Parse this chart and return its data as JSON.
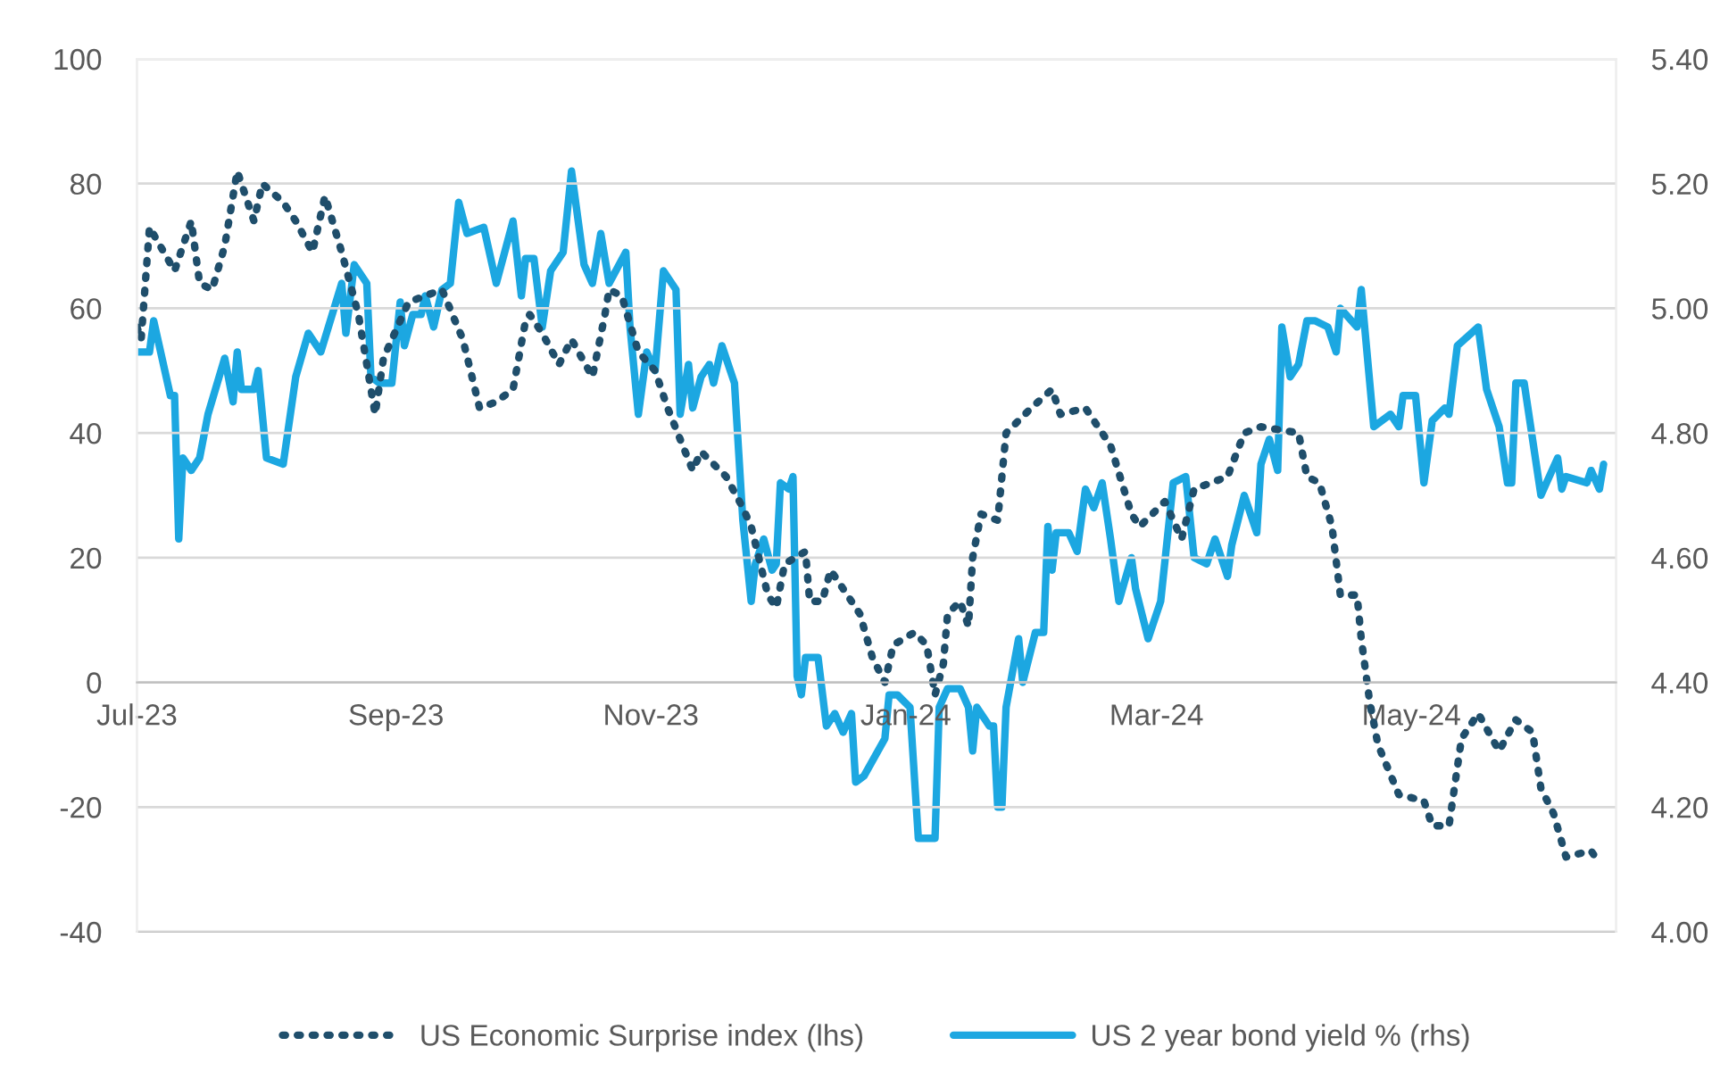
{
  "chart_data": {
    "type": "line",
    "grid": "y",
    "legend": "bottom",
    "xlim": [
      "2023-07-01",
      "2024-06-19"
    ],
    "xticks": [
      {
        "value": "2023-07-01",
        "label": "Jul-23"
      },
      {
        "value": "2023-09-01",
        "label": "Sep-23"
      },
      {
        "value": "2023-11-01",
        "label": "Nov-23"
      },
      {
        "value": "2024-01-01",
        "label": "Jan-24"
      },
      {
        "value": "2024-03-01",
        "label": "Mar-24"
      },
      {
        "value": "2024-05-01",
        "label": "May-24"
      }
    ],
    "ylim": [
      -40,
      100
    ],
    "yticks": [
      -40,
      -20,
      0,
      20,
      40,
      60,
      80,
      100
    ],
    "y2lim": [
      4.0,
      5.4
    ],
    "y2ticks": [
      {
        "value": 4.0,
        "label": "4.00"
      },
      {
        "value": 4.2,
        "label": "4.20"
      },
      {
        "value": 4.4,
        "label": "4.40"
      },
      {
        "value": 4.6,
        "label": "4.60"
      },
      {
        "value": 4.8,
        "label": "4.80"
      },
      {
        "value": 5.0,
        "label": "5.00"
      },
      {
        "value": 5.2,
        "label": "5.20"
      },
      {
        "value": 5.4,
        "label": "5.40"
      }
    ],
    "series": [
      {
        "name": "US Economic Surprise index (lhs)",
        "color": "#1f4e6b",
        "line_style": "dotted",
        "axis": "y",
        "x": [
          "2023-07-01",
          "2023-07-02",
          "2023-07-04",
          "2023-07-10",
          "2023-07-14",
          "2023-07-16",
          "2023-07-19",
          "2023-07-22",
          "2023-07-25",
          "2023-07-29",
          "2023-07-31",
          "2023-08-05",
          "2023-08-08",
          "2023-08-12",
          "2023-08-15",
          "2023-08-19",
          "2023-08-23",
          "2023-08-27",
          "2023-08-29",
          "2023-09-04",
          "2023-09-12",
          "2023-09-17",
          "2023-09-21",
          "2023-09-25",
          "2023-09-29",
          "2023-10-02",
          "2023-10-03",
          "2023-10-06",
          "2023-10-10",
          "2023-10-13",
          "2023-10-18",
          "2023-10-21",
          "2023-10-22",
          "2023-10-25",
          "2023-10-29",
          "2023-11-02",
          "2023-11-05",
          "2023-11-08",
          "2023-11-11",
          "2023-11-13",
          "2023-11-19",
          "2023-11-23",
          "2023-11-25",
          "2023-11-29",
          "2023-12-01",
          "2023-12-03",
          "2023-12-08",
          "2023-12-09",
          "2023-12-12",
          "2023-12-14",
          "2023-12-17",
          "2023-12-21",
          "2023-12-24",
          "2023-12-27",
          "2023-12-29",
          "2024-01-03",
          "2024-01-06",
          "2024-01-08",
          "2024-01-10",
          "2024-01-11",
          "2024-01-14",
          "2024-01-16",
          "2024-01-17",
          "2024-01-19",
          "2024-01-23",
          "2024-01-24",
          "2024-01-25",
          "2024-01-31",
          "2024-02-05",
          "2024-02-07",
          "2024-02-13",
          "2024-02-19",
          "2024-02-24",
          "2024-02-26",
          "2024-03-03",
          "2024-03-07",
          "2024-03-10",
          "2024-03-18",
          "2024-03-22",
          "2024-03-26",
          "2024-04-04",
          "2024-04-06",
          "2024-04-09",
          "2024-04-12",
          "2024-04-14",
          "2024-04-18",
          "2024-04-19",
          "2024-04-21",
          "2024-04-23",
          "2024-04-28",
          "2024-05-04",
          "2024-05-06",
          "2024-05-10",
          "2024-05-13",
          "2024-05-17",
          "2024-05-22",
          "2024-05-26",
          "2024-05-30",
          "2024-06-01",
          "2024-06-04",
          "2024-06-07",
          "2024-06-13",
          "2024-06-15"
        ],
        "values": [
          57,
          55,
          73,
          66,
          74,
          64,
          63,
          70,
          82,
          74,
          80,
          77,
          74,
          69,
          78,
          69,
          59,
          43,
          52,
          61,
          63,
          55,
          44,
          45,
          47,
          58,
          59,
          56,
          51,
          55,
          49,
          59,
          63,
          62,
          53,
          50,
          44,
          39,
          34,
          37,
          33,
          28,
          25,
          14,
          12,
          19,
          21,
          13,
          13,
          18,
          15,
          11,
          4,
          0,
          6,
          8,
          6,
          -2,
          3,
          11,
          13,
          9,
          20,
          27,
          26,
          33,
          40,
          44,
          47,
          43,
          44,
          38,
          27,
          25,
          29,
          23,
          31,
          33,
          40,
          41,
          40,
          33,
          32,
          25,
          14,
          14,
          7,
          -3,
          -10,
          -18,
          -19,
          -23,
          -23,
          -9,
          -5,
          -11,
          -6,
          -8,
          -17,
          -21,
          -28,
          -27,
          -29
        ]
      },
      {
        "name": "US 2 year bond yield % (rhs)",
        "color": "#1ca7e1",
        "line_style": "solid",
        "axis": "y2",
        "x": [
          "2023-07-01",
          "2023-07-04",
          "2023-07-05",
          "2023-07-09",
          "2023-07-10",
          "2023-07-11",
          "2023-07-12",
          "2023-07-14",
          "2023-07-16",
          "2023-07-18",
          "2023-07-22",
          "2023-07-24",
          "2023-07-25",
          "2023-07-26",
          "2023-07-29",
          "2023-07-30",
          "2023-08-01",
          "2023-08-05",
          "2023-08-08",
          "2023-08-11",
          "2023-08-14",
          "2023-08-19",
          "2023-08-20",
          "2023-08-22",
          "2023-08-25",
          "2023-08-26",
          "2023-08-28",
          "2023-08-31",
          "2023-09-02",
          "2023-09-03",
          "2023-09-05",
          "2023-09-07",
          "2023-09-08",
          "2023-09-10",
          "2023-09-12",
          "2023-09-14",
          "2023-09-16",
          "2023-09-18",
          "2023-09-22",
          "2023-09-25",
          "2023-09-29",
          "2023-10-01",
          "2023-10-02",
          "2023-10-04",
          "2023-10-06",
          "2023-10-08",
          "2023-10-11",
          "2023-10-13",
          "2023-10-16",
          "2023-10-18",
          "2023-10-20",
          "2023-10-22",
          "2023-10-26",
          "2023-10-27",
          "2023-10-29",
          "2023-10-31",
          "2023-11-02",
          "2023-11-04",
          "2023-11-07",
          "2023-11-08",
          "2023-11-10",
          "2023-11-11",
          "2023-11-13",
          "2023-11-15",
          "2023-11-16",
          "2023-11-18",
          "2023-11-21",
          "2023-11-23",
          "2023-11-25",
          "2023-11-26",
          "2023-11-28",
          "2023-11-30",
          "2023-12-01",
          "2023-12-02",
          "2023-12-04",
          "2023-12-05",
          "2023-12-06",
          "2023-12-07",
          "2023-12-08",
          "2023-12-11",
          "2023-12-13",
          "2023-12-15",
          "2023-12-17",
          "2023-12-19",
          "2023-12-20",
          "2023-12-22",
          "2023-12-27",
          "2023-12-28",
          "2023-12-30",
          "2024-01-02",
          "2024-01-04",
          "2024-01-08",
          "2024-01-09",
          "2024-01-11",
          "2024-01-14",
          "2024-01-16",
          "2024-01-17",
          "2024-01-18",
          "2024-01-21",
          "2024-01-22",
          "2024-01-23",
          "2024-01-24",
          "2024-01-25",
          "2024-01-28",
          "2024-01-29",
          "2024-02-01",
          "2024-02-03",
          "2024-02-04",
          "2024-02-05",
          "2024-02-06",
          "2024-02-09",
          "2024-02-11",
          "2024-02-13",
          "2024-02-15",
          "2024-02-17",
          "2024-02-19",
          "2024-02-21",
          "2024-02-24",
          "2024-02-25",
          "2024-02-28",
          "2024-03-02",
          "2024-03-05",
          "2024-03-08",
          "2024-03-10",
          "2024-03-13",
          "2024-03-15",
          "2024-03-18",
          "2024-03-19",
          "2024-03-22",
          "2024-03-25",
          "2024-03-26",
          "2024-03-28",
          "2024-03-30",
          "2024-03-31",
          "2024-04-02",
          "2024-04-04",
          "2024-04-06",
          "2024-04-08",
          "2024-04-11",
          "2024-04-13",
          "2024-04-14",
          "2024-04-18",
          "2024-04-19",
          "2024-04-22",
          "2024-04-26",
          "2024-04-28",
          "2024-04-29",
          "2024-05-02",
          "2024-05-04",
          "2024-05-06",
          "2024-05-09",
          "2024-05-10",
          "2024-05-12",
          "2024-05-17",
          "2024-05-19",
          "2024-05-22",
          "2024-05-24",
          "2024-05-25",
          "2024-05-26",
          "2024-05-28",
          "2024-06-01",
          "2024-06-05",
          "2024-06-06",
          "2024-06-07",
          "2024-06-12",
          "2024-06-13",
          "2024-06-15",
          "2024-06-16"
        ],
        "values": [
          4.93,
          4.93,
          4.98,
          4.86,
          4.86,
          4.63,
          4.76,
          4.74,
          4.76,
          4.83,
          4.92,
          4.85,
          4.93,
          4.87,
          4.87,
          4.9,
          4.76,
          4.75,
          4.89,
          4.96,
          4.93,
          5.04,
          4.96,
          5.07,
          5.04,
          4.89,
          4.88,
          4.88,
          5.01,
          4.94,
          4.99,
          4.99,
          5.02,
          4.97,
          5.03,
          5.04,
          5.17,
          5.12,
          5.13,
          5.04,
          5.14,
          5.02,
          5.08,
          5.08,
          4.97,
          5.06,
          5.09,
          5.22,
          5.07,
          5.04,
          5.12,
          5.04,
          5.09,
          4.97,
          4.83,
          4.93,
          4.9,
          5.06,
          5.03,
          4.83,
          4.91,
          4.84,
          4.89,
          4.91,
          4.88,
          4.94,
          4.88,
          4.66,
          4.53,
          4.59,
          4.63,
          4.58,
          4.59,
          4.72,
          4.71,
          4.73,
          4.41,
          4.38,
          4.44,
          4.44,
          4.33,
          4.35,
          4.32,
          4.35,
          4.24,
          4.25,
          4.31,
          4.38,
          4.38,
          4.36,
          4.15,
          4.15,
          4.36,
          4.39,
          4.39,
          4.36,
          4.29,
          4.36,
          4.33,
          4.33,
          4.2,
          4.2,
          4.36,
          4.47,
          4.4,
          4.48,
          4.48,
          4.65,
          4.58,
          4.64,
          4.64,
          4.61,
          4.71,
          4.68,
          4.72,
          4.63,
          4.53,
          4.6,
          4.55,
          4.47,
          4.53,
          4.72,
          4.73,
          4.6,
          4.59,
          4.63,
          4.57,
          4.62,
          4.7,
          4.64,
          4.75,
          4.79,
          4.74,
          4.97,
          4.89,
          4.91,
          4.98,
          4.98,
          4.97,
          4.93,
          5.0,
          4.97,
          5.03,
          4.81,
          4.83,
          4.81,
          4.86,
          4.86,
          4.72,
          4.82,
          4.84,
          4.83,
          4.94,
          4.97,
          4.87,
          4.81,
          4.72,
          4.72,
          4.88,
          4.88,
          4.7,
          4.76,
          4.71,
          4.73,
          4.72,
          4.74,
          4.71,
          4.75
        ]
      }
    ]
  }
}
